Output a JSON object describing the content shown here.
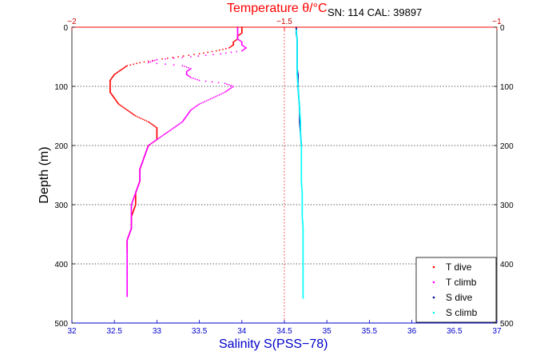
{
  "chart_data": {
    "type": "scatter",
    "title": "SN: 114  CAL: 39897",
    "xlabel": "Salinity S(PSS−78)",
    "x2label": "Temperature θ/°C",
    "ylabel": "Depth (m)",
    "xlim": [
      32,
      37
    ],
    "x2lim": [
      -2,
      -1
    ],
    "ylim": [
      0,
      500
    ],
    "y_reversed": true,
    "grid": "horizontal-dotted",
    "legend_position": "bottom-right",
    "x_ticks": [
      "32",
      "32.5",
      "33",
      "33.5",
      "34",
      "34.5",
      "35",
      "35.5",
      "36",
      "36.5",
      "37"
    ],
    "x2_ticks": [
      "−2",
      "−1.5",
      "−1"
    ],
    "y_ticks": [
      "0",
      "100",
      "200",
      "300",
      "400",
      "500"
    ],
    "series": [
      {
        "name": "T dive",
        "axis": "temperature",
        "color": "#ff0000",
        "points": [
          [
            -1.6,
            0
          ],
          [
            -1.6,
            5
          ],
          [
            -1.6,
            10
          ],
          [
            -1.61,
            15
          ],
          [
            -1.61,
            20
          ],
          [
            -1.62,
            25
          ],
          [
            -1.62,
            30
          ],
          [
            -1.63,
            35
          ],
          [
            -1.66,
            40
          ],
          [
            -1.7,
            45
          ],
          [
            -1.75,
            50
          ],
          [
            -1.8,
            55
          ],
          [
            -1.84,
            60
          ],
          [
            -1.87,
            65
          ],
          [
            -1.88,
            70
          ],
          [
            -1.89,
            75
          ],
          [
            -1.9,
            80
          ],
          [
            -1.91,
            90
          ],
          [
            -1.91,
            100
          ],
          [
            -1.91,
            110
          ],
          [
            -1.9,
            120
          ],
          [
            -1.89,
            130
          ],
          [
            -1.87,
            140
          ],
          [
            -1.85,
            150
          ],
          [
            -1.82,
            160
          ],
          [
            -1.8,
            170
          ],
          [
            -1.8,
            180
          ],
          [
            -1.8,
            190
          ],
          [
            -1.82,
            200
          ],
          [
            -1.83,
            220
          ],
          [
            -1.84,
            240
          ],
          [
            -1.84,
            260
          ],
          [
            -1.85,
            280
          ],
          [
            -1.85,
            300
          ],
          [
            -1.86,
            320
          ],
          [
            -1.86,
            340
          ],
          [
            -1.87,
            360
          ],
          [
            -1.87,
            380
          ]
        ]
      },
      {
        "name": "T climb",
        "axis": "temperature",
        "color": "#ff00ff",
        "points": [
          [
            -1.87,
            455
          ],
          [
            -1.87,
            440
          ],
          [
            -1.87,
            420
          ],
          [
            -1.87,
            400
          ],
          [
            -1.87,
            380
          ],
          [
            -1.87,
            360
          ],
          [
            -1.86,
            340
          ],
          [
            -1.86,
            320
          ],
          [
            -1.86,
            300
          ],
          [
            -1.85,
            280
          ],
          [
            -1.84,
            260
          ],
          [
            -1.84,
            240
          ],
          [
            -1.83,
            220
          ],
          [
            -1.82,
            200
          ],
          [
            -1.8,
            190
          ],
          [
            -1.78,
            180
          ],
          [
            -1.76,
            170
          ],
          [
            -1.74,
            160
          ],
          [
            -1.73,
            150
          ],
          [
            -1.72,
            140
          ],
          [
            -1.7,
            130
          ],
          [
            -1.67,
            120
          ],
          [
            -1.64,
            110
          ],
          [
            -1.62,
            100
          ],
          [
            -1.64,
            95
          ],
          [
            -1.7,
            90
          ],
          [
            -1.72,
            85
          ],
          [
            -1.73,
            80
          ],
          [
            -1.73,
            75
          ],
          [
            -1.72,
            70
          ],
          [
            -1.74,
            65
          ],
          [
            -1.82,
            60
          ],
          [
            -1.8,
            55
          ],
          [
            -1.72,
            50
          ],
          [
            -1.65,
            45
          ],
          [
            -1.6,
            40
          ],
          [
            -1.59,
            35
          ],
          [
            -1.6,
            30
          ],
          [
            -1.6,
            25
          ],
          [
            -1.61,
            20
          ],
          [
            -1.61,
            15
          ],
          [
            -1.61,
            10
          ],
          [
            -1.61,
            5
          ],
          [
            -1.61,
            0
          ]
        ]
      },
      {
        "name": "S dive",
        "axis": "salinity",
        "color": "#000099",
        "points": [
          [
            34.64,
            0
          ],
          [
            34.64,
            10
          ],
          [
            34.65,
            20
          ],
          [
            34.65,
            30
          ],
          [
            34.65,
            40
          ],
          [
            34.65,
            50
          ],
          [
            34.65,
            60
          ],
          [
            34.65,
            70
          ],
          [
            34.66,
            80
          ],
          [
            34.66,
            90
          ],
          [
            34.66,
            100
          ],
          [
            34.67,
            120
          ],
          [
            34.68,
            140
          ],
          [
            34.68,
            160
          ],
          [
            34.69,
            180
          ],
          [
            34.7,
            200
          ]
        ]
      },
      {
        "name": "S climb",
        "axis": "salinity",
        "color": "#00ffff",
        "points": [
          [
            34.72,
            458
          ],
          [
            34.72,
            440
          ],
          [
            34.72,
            420
          ],
          [
            34.72,
            400
          ],
          [
            34.72,
            380
          ],
          [
            34.72,
            360
          ],
          [
            34.72,
            340
          ],
          [
            34.71,
            320
          ],
          [
            34.71,
            300
          ],
          [
            34.71,
            280
          ],
          [
            34.7,
            260
          ],
          [
            34.7,
            240
          ],
          [
            34.7,
            220
          ],
          [
            34.7,
            200
          ],
          [
            34.69,
            180
          ],
          [
            34.69,
            160
          ],
          [
            34.68,
            140
          ],
          [
            34.67,
            120
          ],
          [
            34.66,
            100
          ],
          [
            34.65,
            80
          ],
          [
            34.65,
            60
          ],
          [
            34.65,
            40
          ],
          [
            34.65,
            20
          ],
          [
            34.64,
            5
          ]
        ]
      }
    ]
  }
}
